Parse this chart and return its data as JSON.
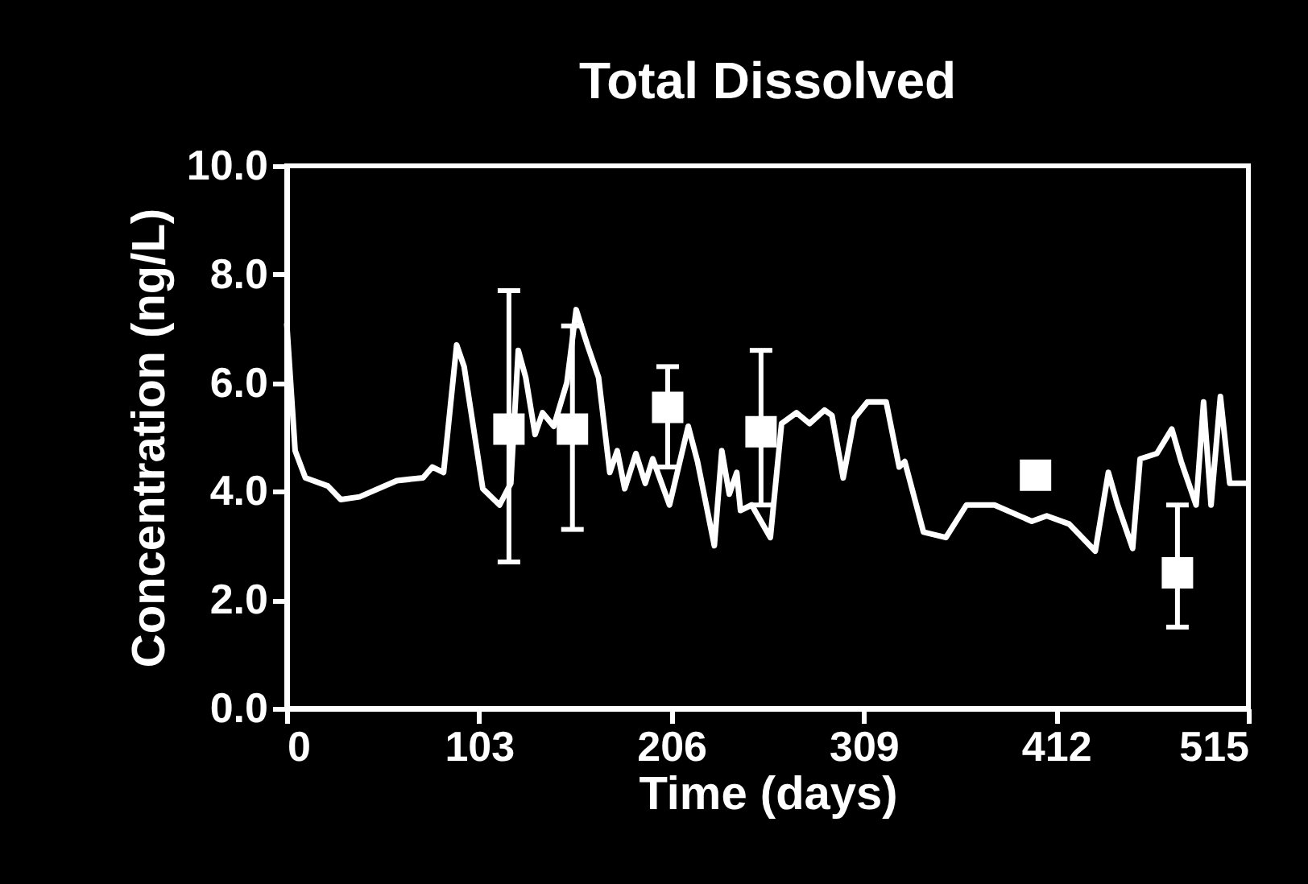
{
  "chart_data": {
    "type": "line",
    "title": "Total Dissolved",
    "xlabel": "Time (days)",
    "ylabel": "Concentration (ng/L)",
    "xlim": [
      0,
      515
    ],
    "xticks": [
      0,
      103,
      206,
      309,
      412,
      515
    ],
    "ylim": [
      0,
      10
    ],
    "yticks": [
      {
        "value": 0,
        "label": "0.0"
      },
      {
        "value": 2,
        "label": "2.0"
      },
      {
        "value": 4,
        "label": "4.0"
      },
      {
        "value": 6,
        "label": "6.0"
      },
      {
        "value": 8,
        "label": "8.0"
      },
      {
        "value": 10,
        "label": "10.0"
      }
    ],
    "grid": false,
    "series": [
      {
        "color": "#ffffff",
        "marker": "none",
        "line_style": "solid",
        "x": [
          0,
          4.5,
          10,
          22,
          29,
          39,
          59,
          73,
          78,
          84,
          91,
          95,
          105,
          114,
          120,
          124,
          128,
          133,
          137,
          143,
          150,
          155,
          161,
          167,
          173,
          177,
          181,
          187,
          192,
          196,
          205,
          215,
          220,
          229,
          233,
          237,
          241,
          243,
          249,
          259,
          265,
          273,
          280,
          288,
          292,
          298,
          304,
          311,
          321,
          328,
          331,
          341,
          353,
          364,
          379,
          399,
          407,
          419,
          433,
          440,
          445,
          453,
          457,
          466,
          474,
          479,
          487,
          491,
          495,
          500,
          505,
          515
        ],
        "values": [
          7.1,
          4.75,
          4.25,
          4.1,
          3.85,
          3.9,
          4.2,
          4.25,
          4.45,
          4.35,
          6.7,
          6.3,
          4.05,
          3.75,
          4.15,
          6.6,
          6.1,
          5.05,
          5.45,
          5.2,
          6.0,
          7.35,
          6.7,
          6.1,
          4.35,
          4.75,
          4.05,
          4.7,
          4.15,
          4.6,
          3.75,
          5.2,
          4.55,
          3.0,
          4.75,
          3.95,
          4.35,
          3.65,
          3.75,
          3.15,
          5.25,
          5.45,
          5.25,
          5.5,
          5.4,
          4.25,
          5.35,
          5.65,
          5.65,
          4.45,
          4.55,
          3.25,
          3.15,
          3.75,
          3.75,
          3.45,
          3.55,
          3.4,
          2.9,
          4.35,
          3.75,
          2.95,
          4.6,
          4.7,
          5.15,
          4.55,
          3.75,
          5.65,
          3.75,
          5.75,
          4.15,
          4.15
        ]
      },
      {
        "type": "scatter",
        "color": "#ffffff",
        "marker": "square",
        "x": [
          119,
          153,
          204,
          254,
          401,
          477
        ],
        "values": [
          5.15,
          5.15,
          5.55,
          5.1,
          4.3,
          2.5
        ],
        "errors": [
          [
            2.7,
            7.7
          ],
          [
            3.3,
            7.05
          ],
          [
            4.45,
            6.3
          ],
          [
            3.75,
            6.6
          ],
          null,
          [
            1.5,
            3.75
          ]
        ]
      }
    ]
  }
}
